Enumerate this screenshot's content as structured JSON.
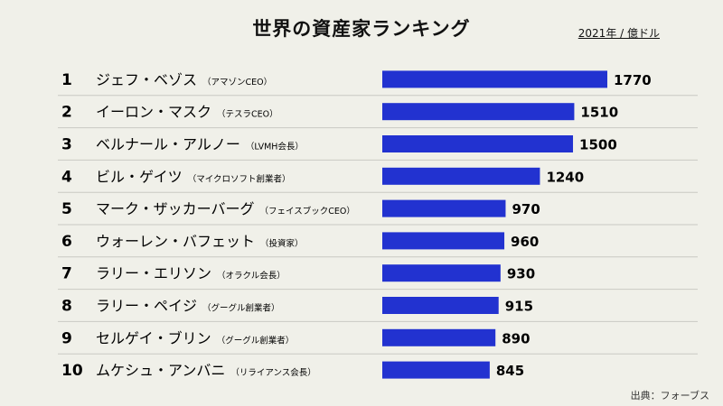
{
  "chart_data": {
    "type": "bar",
    "orientation": "horizontal",
    "title": "世界の資産家ランキング",
    "unit_note": "2021年 / 億ドル",
    "source": "出典：フォーブス",
    "bar_color": "#2232d0",
    "background": "#f0f0e9",
    "divider_color": "#c9c9c3",
    "rows": [
      {
        "rank": "1",
        "name": "ジェフ・ベゾス",
        "note": "（アマゾンCEO）",
        "value": 1770
      },
      {
        "rank": "2",
        "name": "イーロン・マスク",
        "note": "（テスラCEO）",
        "value": 1510
      },
      {
        "rank": "3",
        "name": "ベルナール・アルノー",
        "note": "（LVMH会長）",
        "value": 1500
      },
      {
        "rank": "4",
        "name": "ビル・ゲイツ",
        "note": "（マイクロソフト創業者）",
        "value": 1240
      },
      {
        "rank": "5",
        "name": "マーク・ザッカーバーグ",
        "note": "（フェイスブックCEO）",
        "value": 970
      },
      {
        "rank": "6",
        "name": "ウォーレン・バフェット",
        "note": "（投資家）",
        "value": 960
      },
      {
        "rank": "7",
        "name": "ラリー・エリソン",
        "note": "（オラクル会長）",
        "value": 930
      },
      {
        "rank": "8",
        "name": "ラリー・ペイジ",
        "note": "（グーグル創業者）",
        "value": 915
      },
      {
        "rank": "9",
        "name": "セルゲイ・ブリン",
        "note": "（グーグル創業者）",
        "value": 890
      },
      {
        "rank": "10",
        "name": "ムケシュ・アンバニ",
        "note": "（リライアンス会長）",
        "value": 845
      }
    ]
  }
}
